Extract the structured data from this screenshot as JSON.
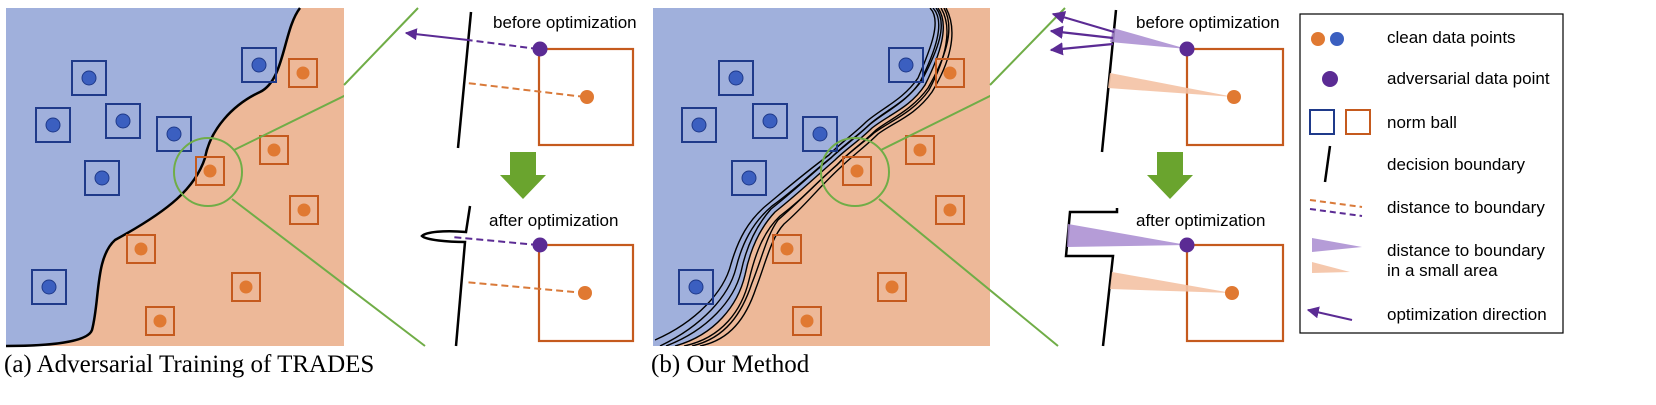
{
  "panels": [
    {
      "caption": "(a) Adversarial Training of TRADES",
      "zoom_top_label": "before optimization",
      "zoom_bottom_label": "after optimization"
    },
    {
      "caption": "(b) Our Method",
      "zoom_top_label": "before optimization",
      "zoom_bottom_label": "after optimization"
    }
  ],
  "legend": {
    "items": [
      {
        "icon": "clean-data-points-icon",
        "label": "clean data points"
      },
      {
        "icon": "adversarial-data-point-icon",
        "label": "adversarial data point"
      },
      {
        "icon": "norm-ball-icon",
        "label": "norm ball"
      },
      {
        "icon": "decision-boundary-icon",
        "label": "decision boundary"
      },
      {
        "icon": "distance-to-boundary-icon",
        "label": "distance to boundary"
      },
      {
        "icon": "distance-small-area-icon",
        "label": "distance to boundary",
        "label2": "in a small area"
      },
      {
        "icon": "optimization-direction-icon",
        "label": "optimization direction"
      }
    ]
  },
  "colors": {
    "blue_region": "#a0b0dc",
    "orange_region": "#edb898",
    "blue_point": "#3b5fc0",
    "orange_point": "#e07932",
    "adversarial": "#5b2b94",
    "zoom_circle": "#70ad47",
    "down_arrow": "#6aa42e"
  }
}
